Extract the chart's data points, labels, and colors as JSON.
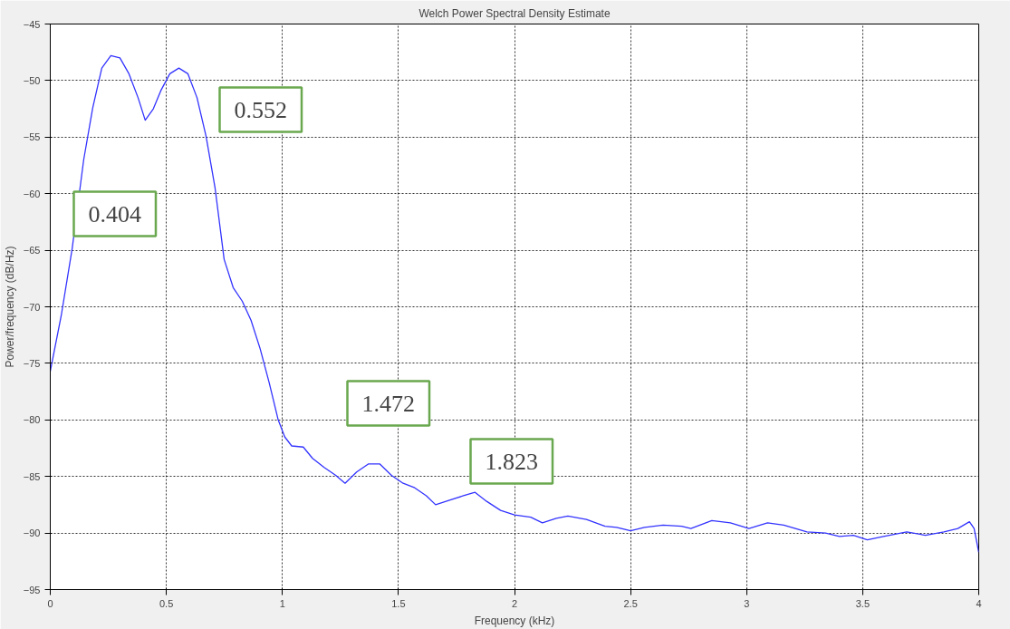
{
  "chart_data": {
    "type": "line",
    "title": "Welch Power Spectral Density Estimate",
    "xlabel": "Frequency (kHz)",
    "ylabel": "Power/frequency (dB/Hz)",
    "x": [
      0,
      0.047,
      0.094,
      0.144,
      0.183,
      0.222,
      0.261,
      0.3,
      0.339,
      0.378,
      0.409,
      0.444,
      0.476,
      0.515,
      0.554,
      0.593,
      0.632,
      0.671,
      0.71,
      0.749,
      0.788,
      0.827,
      0.865,
      0.904,
      0.943,
      0.982,
      1.01,
      1.04,
      1.09,
      1.13,
      1.18,
      1.23,
      1.27,
      1.32,
      1.37,
      1.42,
      1.47,
      1.52,
      1.57,
      1.62,
      1.66,
      1.72,
      1.78,
      1.83,
      1.88,
      1.94,
      2.0,
      2.07,
      2.12,
      2.18,
      2.23,
      2.31,
      2.39,
      2.44,
      2.5,
      2.56,
      2.64,
      2.72,
      2.76,
      2.85,
      2.93,
      3.01,
      3.09,
      3.16,
      3.26,
      3.34,
      3.4,
      3.46,
      3.52,
      3.59,
      3.69,
      3.77,
      3.85,
      3.91,
      3.96,
      3.98,
      4.0
    ],
    "series": [
      {
        "color": "#3333ff",
        "values": [
          -75.7,
          -70.8,
          -64.9,
          -57.0,
          -52.4,
          -48.9,
          -47.8,
          -48.0,
          -49.4,
          -51.5,
          -53.5,
          -52.5,
          -50.9,
          -49.4,
          -48.9,
          -49.4,
          -51.5,
          -54.9,
          -59.5,
          -65.8,
          -68.3,
          -69.5,
          -71.2,
          -73.7,
          -76.7,
          -80.0,
          -81.5,
          -82.3,
          -82.4,
          -83.4,
          -84.2,
          -84.9,
          -85.6,
          -84.6,
          -83.9,
          -83.9,
          -84.9,
          -85.6,
          -86.0,
          -86.7,
          -87.5,
          -87.1,
          -86.7,
          -86.4,
          -87.2,
          -88.0,
          -88.4,
          -88.6,
          -89.1,
          -88.7,
          -88.5,
          -88.8,
          -89.4,
          -89.5,
          -89.8,
          -89.5,
          -89.3,
          -89.4,
          -89.6,
          -88.9,
          -89.1,
          -89.6,
          -89.1,
          -89.3,
          -89.9,
          -90.0,
          -90.3,
          -90.2,
          -90.6,
          -90.3,
          -89.9,
          -90.2,
          -89.9,
          -89.6,
          -89.0,
          -89.6,
          -91.7
        ]
      }
    ],
    "xlim": [
      0,
      4
    ],
    "xticks": [
      0,
      0.5,
      1,
      1.5,
      2,
      2.5,
      3,
      3.5,
      4
    ],
    "ylim": [
      -95,
      -45
    ],
    "yticks": [
      -95,
      -90,
      -85,
      -80,
      -75,
      -70,
      -65,
      -60,
      -55,
      -50,
      -45
    ],
    "grid": true,
    "marker": "none",
    "line_style": "solid",
    "annotations": [
      "0.404",
      "0.552",
      "1.472",
      "1.823"
    ]
  }
}
